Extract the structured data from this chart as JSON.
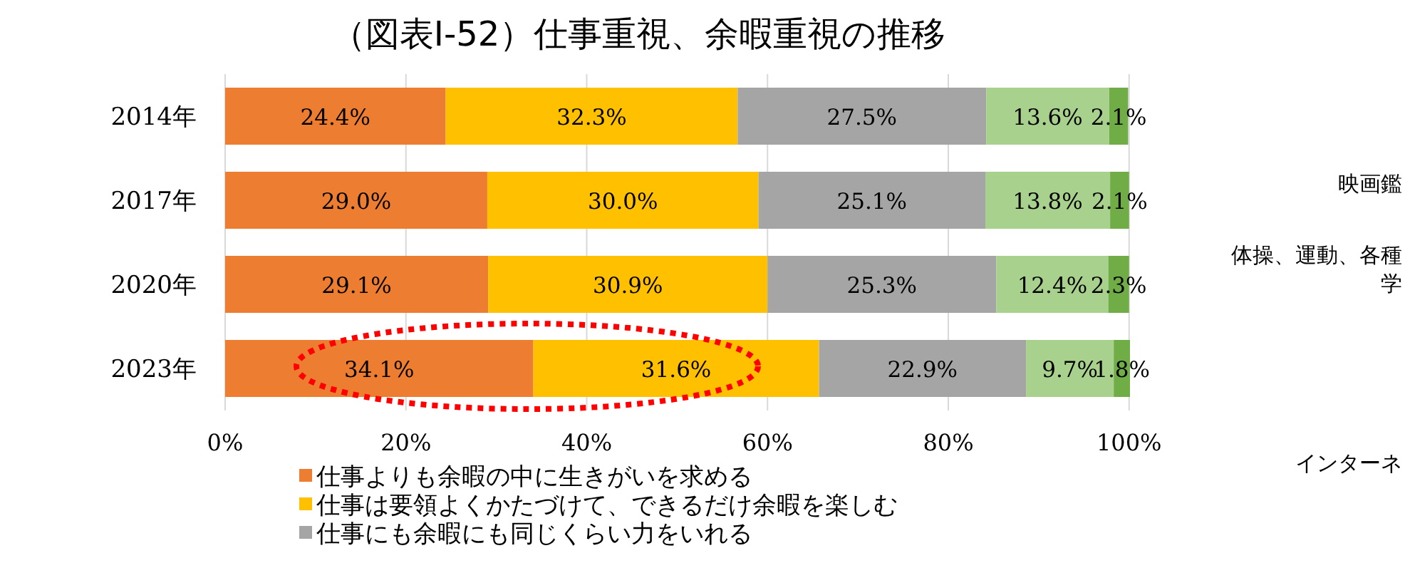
{
  "chart_data": {
    "type": "bar",
    "orientation": "horizontal",
    "stacked": true,
    "title": "（図表Ⅰ-52）仕事重視、余暇重視の推移",
    "categories": [
      "2014年",
      "2017年",
      "2020年",
      "2023年"
    ],
    "series": [
      {
        "name": "仕事よりも余暇の中に生きがいを求める",
        "color": "#ed7d31",
        "values": [
          24.4,
          29.0,
          29.1,
          34.1
        ],
        "value_labels": [
          "24.4%",
          "29.0%",
          "29.1%",
          "34.1%"
        ]
      },
      {
        "name": "仕事は要領よくかたづけて、できるだけ余暇を楽しむ",
        "color": "#ffc000",
        "values": [
          32.3,
          30.0,
          30.9,
          31.6
        ],
        "value_labels": [
          "32.3%",
          "30.0%",
          "30.9%",
          "31.6%"
        ]
      },
      {
        "name": "仕事にも余暇にも同じくらい力をいれる",
        "color": "#a5a5a5",
        "values": [
          27.5,
          25.1,
          25.3,
          22.9
        ],
        "value_labels": [
          "27.5%",
          "25.1%",
          "25.3%",
          "22.9%"
        ]
      },
      {
        "color": "#a9d18e",
        "values": [
          13.6,
          13.8,
          12.4,
          9.7
        ],
        "value_labels": [
          "13.6%",
          "13.8%",
          "12.4%",
          "9.7%"
        ]
      },
      {
        "color": "#70ad47",
        "values": [
          2.1,
          2.1,
          2.3,
          1.8
        ],
        "value_labels": [
          "2.1%",
          "2.1%",
          "2.3%",
          "1.8%"
        ]
      }
    ],
    "xlim": [
      0,
      100.1
    ],
    "xticks": [
      {
        "value": 0,
        "label": "0%"
      },
      {
        "value": 20,
        "label": "20%"
      },
      {
        "value": 40,
        "label": "40%"
      },
      {
        "value": 60,
        "label": "60%"
      },
      {
        "value": 80,
        "label": "80%"
      },
      {
        "value": 100,
        "label": "100%"
      }
    ],
    "grid": "x",
    "legend": "bottom",
    "annotations": [
      "映画鑑",
      "体操、運動、各種",
      "学",
      "インターネ"
    ]
  }
}
